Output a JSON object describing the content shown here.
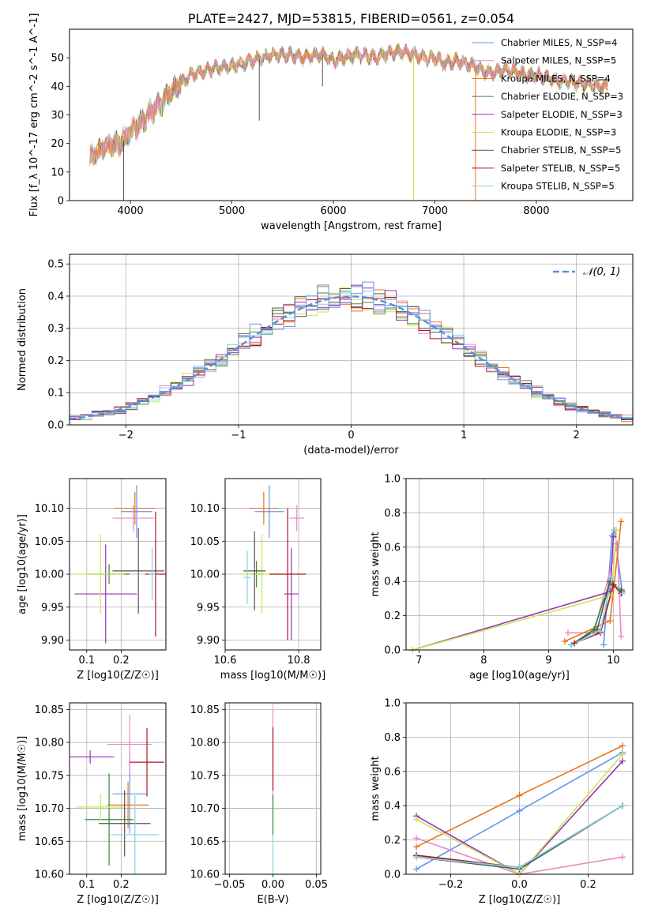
{
  "colors": {
    "chabrier_miles": "#6495ed",
    "salpeter_miles": "#e78ac3",
    "kroupa_miles": "#e8741a",
    "chabrier_elodie": "#3b8a3b",
    "salpeter_elodie": "#9b30b8",
    "kroupa_elodie": "#c8e650",
    "chabrier_stelib": "#555555",
    "salpeter_stelib": "#b0141e",
    "kroupa_stelib": "#7fd3e3",
    "normal": "#5b8fd8"
  },
  "chart_data": [
    {
      "id": "spectrum",
      "type": "line",
      "title": "PLATE=2427, MJD=53815, FIBERID=0561, z=0.054",
      "xlabel": "wavelength [Angstrom, rest frame]",
      "ylabel": "Flux [f_λ 10^-17 erg cm^-2 s^-1 A^-1]",
      "xlim": [
        3400,
        8950
      ],
      "ylim": [
        0,
        60
      ],
      "xticks": [
        "4000",
        "5000",
        "6000",
        "7000",
        "8000"
      ],
      "yticks": [
        "0",
        "10",
        "20",
        "30",
        "40",
        "50"
      ],
      "grid": false,
      "legend_position": "top-right",
      "legend": [
        "Chabrier MILES, N_SSP=4",
        "Salpeter MILES, N_SSP=5",
        "Kroupa MILES, N_SSP=4",
        "Chabrier ELODIE, N_SSP=3",
        "Salpeter ELODIE, N_SSP=3",
        "Kroupa ELODIE, N_SSP=3",
        "Chabrier STELIB, N_SSP=5",
        "Salpeter STELIB, N_SSP=5",
        "Kroupa STELIB, N_SSP=5"
      ],
      "continuum": {
        "x": [
          3600,
          3750,
          3900,
          4000,
          4100,
          4200,
          4300,
          4400,
          4500,
          4600,
          4700,
          4800,
          4900,
          5000,
          5100,
          5200,
          5300,
          5400,
          5500,
          5600,
          5700,
          5800,
          5900,
          6000,
          6100,
          6200,
          6300,
          6400,
          6500,
          6600,
          6700,
          6800,
          6900,
          7000,
          7100,
          7200,
          7300,
          7400,
          7500,
          7600,
          7700,
          7800,
          7900,
          8000,
          8100,
          8200,
          8300,
          8400,
          8500,
          8600,
          8700
        ],
        "y": [
          15,
          19,
          20,
          24,
          27,
          31,
          34,
          38,
          41,
          44,
          45,
          46,
          47,
          47,
          48,
          49,
          50,
          51,
          51,
          51,
          50,
          51,
          51,
          49,
          50,
          51,
          51,
          50,
          51,
          52,
          52,
          51,
          50,
          50,
          48,
          49,
          48,
          47,
          45,
          45,
          46,
          45,
          44,
          44,
          43,
          42,
          42,
          41,
          41,
          40,
          40
        ]
      },
      "absorption_lines": [
        {
          "x": 3933,
          "y": 0
        },
        {
          "x": 5270,
          "y": 28
        },
        {
          "x": 5893,
          "y": 40
        },
        {
          "x": 6790,
          "y": 0
        },
        {
          "x": 7400,
          "y": 0
        }
      ]
    },
    {
      "id": "residuals",
      "type": "histogram",
      "xlabel": "(data-model)/error",
      "ylabel": "Normed distribution",
      "xlim": [
        -2.5,
        2.5
      ],
      "ylim": [
        0,
        0.53
      ],
      "xticks": [
        "−2",
        "−1",
        "0",
        "1",
        "2"
      ],
      "yticks": [
        "0.0",
        "0.1",
        "0.2",
        "0.3",
        "0.4",
        "0.5"
      ],
      "grid": true,
      "legend_position": "top-right",
      "legend": [
        "𝒩(0, 1)"
      ],
      "bin_width": 0.1
    },
    {
      "id": "age_vs_z",
      "type": "scatter",
      "xlabel": "Z [log10(Z/Z☉)]",
      "ylabel": "age  [log10(age/yr)]",
      "xlim": [
        0.05,
        0.33
      ],
      "ylim": [
        9.885,
        10.145
      ],
      "xticks": [
        "0.1",
        "0.2"
      ],
      "yticks": [
        "9.90",
        "9.95",
        "10.00",
        "10.05",
        "10.10"
      ],
      "grid": true,
      "points": [
        {
          "series": "chabrier_miles",
          "x": 0.245,
          "y": 10.095,
          "xerr": 0.045,
          "yerr": 0.04
        },
        {
          "series": "salpeter_miles",
          "x": 0.235,
          "y": 10.085,
          "xerr": 0.06,
          "yerr": 0.02
        },
        {
          "series": "kroupa_miles",
          "x": 0.24,
          "y": 10.1,
          "xerr": 0.06,
          "yerr": 0.025
        },
        {
          "series": "chabrier_elodie",
          "x": 0.165,
          "y": 10.0,
          "xerr": 0.06,
          "yerr": 0.015
        },
        {
          "series": "salpeter_elodie",
          "x": 0.155,
          "y": 9.97,
          "xerr": 0.09,
          "yerr": 0.075
        },
        {
          "series": "kroupa_elodie",
          "x": 0.14,
          "y": 10.0,
          "xerr": 0.07,
          "yerr": 0.06
        },
        {
          "series": "chabrier_stelib",
          "x": 0.25,
          "y": 10.005,
          "xerr": 0.075,
          "yerr": 0.065
        },
        {
          "series": "salpeter_stelib",
          "x": 0.3,
          "y": 10.0,
          "xerr": 0.03,
          "yerr": 0.095
        },
        {
          "series": "kroupa_stelib",
          "x": 0.29,
          "y": 10.0,
          "xerr": 0.01,
          "yerr": 0.04
        }
      ]
    },
    {
      "id": "age_vs_mass",
      "type": "scatter",
      "xlabel": "mass [log10(M/M☉)]",
      "ylabel": "",
      "xlim": [
        10.6,
        10.86
      ],
      "ylim": [
        9.885,
        10.145
      ],
      "xticks": [
        "10.6",
        "10.8"
      ],
      "yticks": [
        "9.90",
        "9.95",
        "10.00",
        "10.05",
        "10.10"
      ],
      "grid": true,
      "points": [
        {
          "series": "chabrier_miles",
          "x": 10.72,
          "y": 10.095,
          "xerr": 0.04,
          "yerr": 0.04
        },
        {
          "series": "salpeter_miles",
          "x": 10.795,
          "y": 10.085,
          "xerr": 0.02,
          "yerr": 0.02
        },
        {
          "series": "kroupa_miles",
          "x": 10.705,
          "y": 10.1,
          "xerr": 0.04,
          "yerr": 0.025
        },
        {
          "series": "chabrier_elodie",
          "x": 10.685,
          "y": 10.0,
          "xerr": 0.02,
          "yerr": 0.02
        },
        {
          "series": "salpeter_elodie",
          "x": 10.78,
          "y": 9.97,
          "xerr": 0.02,
          "yerr": 0.07
        },
        {
          "series": "kroupa_elodie",
          "x": 10.7,
          "y": 10.0,
          "xerr": 0.06,
          "yerr": 0.06
        },
        {
          "series": "chabrier_stelib",
          "x": 10.68,
          "y": 10.005,
          "xerr": 0.03,
          "yerr": 0.06
        },
        {
          "series": "salpeter_stelib",
          "x": 10.77,
          "y": 10.0,
          "xerr": 0.05,
          "yerr": 0.1
        },
        {
          "series": "kroupa_stelib",
          "x": 10.66,
          "y": 9.995,
          "xerr": 0.01,
          "yerr": 0.04
        }
      ]
    },
    {
      "id": "weight_vs_age",
      "type": "line",
      "xlabel": "age  [log10(age/yr)]",
      "ylabel": "mass weight",
      "xlim": [
        6.8,
        10.3
      ],
      "ylim": [
        0,
        1
      ],
      "xticks": [
        "7",
        "8",
        "9",
        "10"
      ],
      "yticks": [
        "0.0",
        "0.2",
        "0.4",
        "0.6",
        "0.8",
        "1.0"
      ],
      "grid": true,
      "series": [
        {
          "key": "chabrier_miles",
          "x": [
            9.85,
            9.98,
            10.02,
            10.13
          ],
          "y": [
            0.03,
            0.67,
            0.7,
            0.35
          ]
        },
        {
          "key": "salpeter_miles",
          "x": [
            9.3,
            9.7,
            10.06,
            10.12
          ],
          "y": [
            0.1,
            0.1,
            0.62,
            0.08
          ]
        },
        {
          "key": "kroupa_miles",
          "x": [
            9.25,
            9.95,
            10.12
          ],
          "y": [
            0.05,
            0.17,
            0.75
          ]
        },
        {
          "key": "chabrier_elodie",
          "x": [
            9.35,
            9.7,
            9.95,
            10.12
          ],
          "y": [
            0.03,
            0.12,
            0.4,
            0.35
          ]
        },
        {
          "key": "salpeter_elodie",
          "x": [
            6.9,
            9.95,
            10.0
          ],
          "y": [
            0.0,
            0.34,
            0.66
          ]
        },
        {
          "key": "kroupa_elodie",
          "x": [
            6.9,
            9.97,
            10.05
          ],
          "y": [
            0.0,
            0.32,
            0.7
          ]
        },
        {
          "key": "chabrier_stelib",
          "x": [
            9.35,
            9.75,
            9.95,
            10.13
          ],
          "y": [
            0.03,
            0.12,
            0.4,
            0.34
          ]
        },
        {
          "key": "salpeter_stelib",
          "x": [
            9.4,
            9.8,
            10.0,
            10.12
          ],
          "y": [
            0.04,
            0.1,
            0.38,
            0.33
          ]
        },
        {
          "key": "kroupa_stelib",
          "x": [
            9.35,
            9.8,
            9.97,
            10.14
          ],
          "y": [
            0.03,
            0.11,
            0.41,
            0.33
          ]
        }
      ]
    },
    {
      "id": "mass_vs_z",
      "type": "scatter",
      "xlabel": "Z [log10(Z/Z☉)]",
      "ylabel": "mass [log10(M/M☉)]",
      "xlim": [
        0.05,
        0.33
      ],
      "ylim": [
        10.6,
        10.86
      ],
      "xticks": [
        "0.1",
        "0.2"
      ],
      "yticks": [
        "10.60",
        "10.65",
        "10.70",
        "10.75",
        "10.80",
        "10.85"
      ],
      "grid": true,
      "points": [
        {
          "series": "chabrier_miles",
          "x": 0.225,
          "y": 10.722,
          "xerr": 0.05,
          "yerr": 0.06
        },
        {
          "series": "salpeter_miles",
          "x": 0.225,
          "y": 10.797,
          "xerr": 0.065,
          "yerr": 0.045
        },
        {
          "series": "kroupa_miles",
          "x": 0.22,
          "y": 10.705,
          "xerr": 0.06,
          "yerr": 0.035
        },
        {
          "series": "chabrier_elodie",
          "x": 0.165,
          "y": 10.683,
          "xerr": 0.07,
          "yerr": 0.07
        },
        {
          "series": "salpeter_elodie",
          "x": 0.11,
          "y": 10.778,
          "xerr": 0.07,
          "yerr": 0.01
        },
        {
          "series": "kroupa_elodie",
          "x": 0.14,
          "y": 10.702,
          "xerr": 0.07,
          "yerr": 0.02
        },
        {
          "series": "chabrier_stelib",
          "x": 0.21,
          "y": 10.677,
          "xerr": 0.075,
          "yerr": 0.05
        },
        {
          "series": "salpeter_stelib",
          "x": 0.275,
          "y": 10.77,
          "xerr": 0.05,
          "yerr": 0.052
        },
        {
          "series": "kroupa_stelib",
          "x": 0.24,
          "y": 10.66,
          "xerr": 0.07,
          "yerr": 0.06
        }
      ]
    },
    {
      "id": "mass_vs_ebv",
      "type": "scatter",
      "xlabel": "E(B-V)",
      "ylabel": "",
      "xlim": [
        -0.055,
        0.055
      ],
      "ylim": [
        10.6,
        10.86
      ],
      "xticks": [
        "−0.05",
        "0.00",
        "0.05"
      ],
      "yticks": [
        "10.60",
        "10.65",
        "10.70",
        "10.75",
        "10.80",
        "10.85"
      ],
      "grid": true,
      "points": [
        {
          "series": "salpeter_miles",
          "x": 0.0,
          "y": 10.78,
          "xerr": 0.0,
          "yerr": 0.07
        },
        {
          "series": "salpeter_stelib",
          "x": 0.0,
          "y": 10.775,
          "xerr": 0.0,
          "yerr": 0.048
        },
        {
          "series": "kroupa_stelib",
          "x": 0.0,
          "y": 10.66,
          "xerr": 0.0,
          "yerr": 0.06
        },
        {
          "series": "chabrier_elodie",
          "x": 0.0,
          "y": 10.69,
          "xerr": 0.0,
          "yerr": 0.03
        }
      ]
    },
    {
      "id": "weight_vs_z",
      "type": "line",
      "xlabel": "Z [log10(Z/Z☉)]",
      "ylabel": "mass weight",
      "xlim": [
        -0.33,
        0.33
      ],
      "ylim": [
        0,
        1
      ],
      "xticks": [
        "−0.2",
        "0.0",
        "0.2"
      ],
      "yticks": [
        "0.0",
        "0.2",
        "0.4",
        "0.6",
        "0.8",
        "1.0"
      ],
      "grid": true,
      "series": [
        {
          "key": "chabrier_miles",
          "x": [
            -0.3,
            0.0,
            0.3
          ],
          "y": [
            0.03,
            0.37,
            0.71
          ]
        },
        {
          "key": "salpeter_miles",
          "x": [
            -0.3,
            0.0,
            0.3
          ],
          "y": [
            0.21,
            0.0,
            0.1
          ]
        },
        {
          "key": "kroupa_miles",
          "x": [
            -0.3,
            0.0,
            0.3
          ],
          "y": [
            0.16,
            0.46,
            0.75
          ]
        },
        {
          "key": "chabrier_elodie",
          "x": [
            -0.3,
            0.0,
            0.3
          ],
          "y": [
            0.11,
            0.04,
            0.4
          ]
        },
        {
          "key": "salpeter_elodie",
          "x": [
            -0.3,
            0.0,
            0.3
          ],
          "y": [
            0.34,
            0.0,
            0.66
          ]
        },
        {
          "key": "kroupa_elodie",
          "x": [
            -0.3,
            0.0,
            0.3
          ],
          "y": [
            0.32,
            0.0,
            0.7
          ]
        },
        {
          "key": "chabrier_stelib",
          "x": [
            -0.3,
            0.0,
            0.3
          ],
          "y": [
            0.1,
            0.03,
            0.4
          ]
        },
        {
          "key": "salpeter_stelib",
          "x": [
            -0.3,
            0.0,
            0.3
          ],
          "y": [
            0.11,
            0.04,
            0.4
          ]
        },
        {
          "key": "kroupa_stelib",
          "x": [
            -0.3,
            0.0,
            0.3
          ],
          "y": [
            0.1,
            0.04,
            0.4
          ]
        }
      ]
    }
  ]
}
